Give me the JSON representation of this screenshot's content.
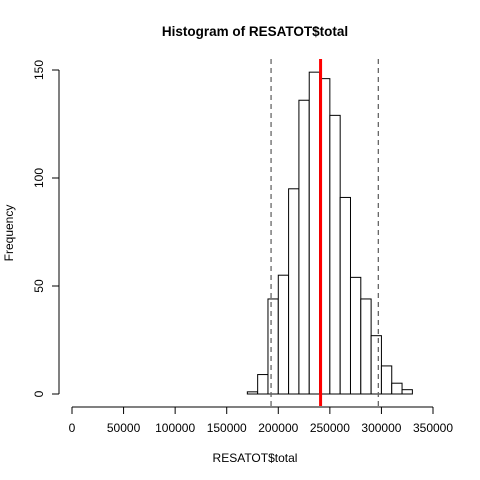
{
  "chart_data": {
    "type": "bar",
    "title": "Histogram of RESATOT$total",
    "xlabel": "RESATOT$total",
    "ylabel": "Frequency",
    "xlim": [
      0,
      350000
    ],
    "ylim": [
      0,
      150
    ],
    "x_ticks": [
      0,
      50000,
      100000,
      150000,
      200000,
      250000,
      300000,
      350000
    ],
    "y_ticks": [
      0,
      50,
      100,
      150
    ],
    "bin_width": 10000,
    "bins": [
      {
        "start": 170000,
        "end": 180000,
        "count": 1
      },
      {
        "start": 180000,
        "end": 190000,
        "count": 9
      },
      {
        "start": 190000,
        "end": 200000,
        "count": 44
      },
      {
        "start": 200000,
        "end": 210000,
        "count": 55
      },
      {
        "start": 210000,
        "end": 220000,
        "count": 95
      },
      {
        "start": 220000,
        "end": 230000,
        "count": 136
      },
      {
        "start": 230000,
        "end": 240000,
        "count": 149
      },
      {
        "start": 240000,
        "end": 250000,
        "count": 146
      },
      {
        "start": 250000,
        "end": 260000,
        "count": 129
      },
      {
        "start": 260000,
        "end": 270000,
        "count": 91
      },
      {
        "start": 270000,
        "end": 280000,
        "count": 54
      },
      {
        "start": 280000,
        "end": 290000,
        "count": 44
      },
      {
        "start": 290000,
        "end": 300000,
        "count": 27
      },
      {
        "start": 300000,
        "end": 310000,
        "count": 13
      },
      {
        "start": 310000,
        "end": 320000,
        "count": 5
      },
      {
        "start": 320000,
        "end": 330000,
        "count": 2
      }
    ],
    "reference_lines": [
      {
        "x": 193000,
        "style": "dashed",
        "color": "#666666"
      },
      {
        "x": 241000,
        "style": "solid",
        "color": "#ff0000"
      },
      {
        "x": 297000,
        "style": "dashed",
        "color": "#666666"
      }
    ],
    "grid": false,
    "legend": "none"
  }
}
